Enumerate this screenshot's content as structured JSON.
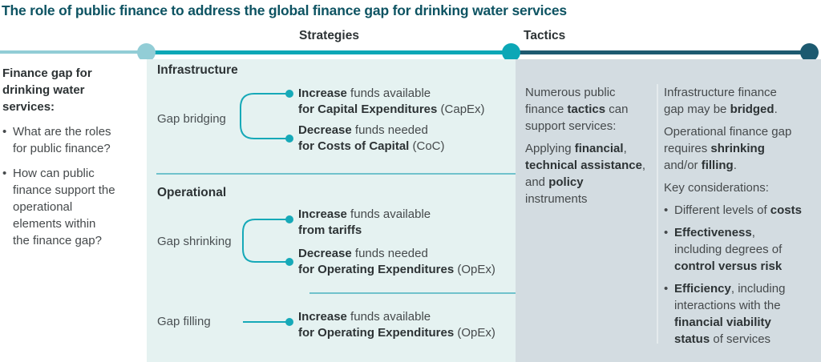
{
  "title": "The role of public finance to address the global finance gap for drinking water services",
  "column_headers": {
    "strategies": "Strategies",
    "tactics": "Tactics"
  },
  "left_panel": {
    "heading_lines": [
      "Finance gap for",
      "drinking water",
      "services:"
    ],
    "bullets": [
      {
        "lines": [
          "What are the roles",
          "for public finance?"
        ]
      },
      {
        "lines": [
          "How can public",
          "finance support the",
          "operational",
          "elements within",
          "the finance gap?"
        ]
      }
    ]
  },
  "strategies": {
    "infrastructure_heading": "Infrastructure",
    "operational_heading": "Operational",
    "gap_bridging_label": "Gap bridging",
    "gap_shrinking_label": "Gap shrinking",
    "gap_filling_label": "Gap filling",
    "items": {
      "capex": {
        "line1": [
          {
            "t": "Increase",
            "b": true
          },
          {
            "t": " funds available"
          }
        ],
        "line2": [
          {
            "t": "for Capital Expenditures",
            "b": true
          },
          {
            "t": " (CapEx)"
          }
        ]
      },
      "coc": {
        "line1": [
          {
            "t": "Decrease",
            "b": true
          },
          {
            "t": " funds needed"
          }
        ],
        "line2": [
          {
            "t": "for Costs of Capital",
            "b": true
          },
          {
            "t": " (CoC)"
          }
        ]
      },
      "tariffs": {
        "line1": [
          {
            "t": "Increase",
            "b": true
          },
          {
            "t": " funds available"
          }
        ],
        "line2": [
          {
            "t": "from tariffs",
            "b": true
          }
        ]
      },
      "opex_decrease": {
        "line1": [
          {
            "t": "Decrease",
            "b": true
          },
          {
            "t": " funds needed"
          }
        ],
        "line2": [
          {
            "t": "for Operating Expenditures",
            "b": true
          },
          {
            "t": " (OpEx)"
          }
        ]
      },
      "opex_increase": {
        "line1": [
          {
            "t": "Increase",
            "b": true
          },
          {
            "t": " funds available"
          }
        ],
        "line2": [
          {
            "t": "for Operating Expenditures",
            "b": true
          },
          {
            "t": " (OpEx)"
          }
        ]
      }
    }
  },
  "tactics": {
    "intro": {
      "lines": [
        [
          {
            "t": "Numerous public"
          }
        ],
        [
          {
            "t": "finance "
          },
          {
            "t": "tactics",
            "b": true
          },
          {
            "t": " can"
          }
        ],
        [
          {
            "t": "support services:"
          }
        ]
      ]
    },
    "instruments": {
      "lines": [
        [
          {
            "t": "Applying "
          },
          {
            "t": "financial",
            "b": true
          },
          {
            "t": ","
          }
        ],
        [
          {
            "t": "technical assistance",
            "b": true
          },
          {
            "t": ","
          }
        ],
        [
          {
            "t": "and "
          },
          {
            "t": "policy",
            "b": true
          }
        ],
        [
          {
            "t": "instruments"
          }
        ]
      ]
    },
    "outcome_infrastructure": {
      "lines": [
        [
          {
            "t": "Infrastructure finance"
          }
        ],
        [
          {
            "t": "gap may be "
          },
          {
            "t": "bridged",
            "b": true
          },
          {
            "t": "."
          }
        ]
      ]
    },
    "outcome_operational": {
      "lines": [
        [
          {
            "t": "Operational finance gap"
          }
        ],
        [
          {
            "t": "requires "
          },
          {
            "t": "shrinking",
            "b": true
          }
        ],
        [
          {
            "t": "and/or "
          },
          {
            "t": "filling",
            "b": true
          },
          {
            "t": "."
          }
        ]
      ]
    },
    "key_considerations_heading": "Key considerations:",
    "considerations": [
      {
        "lines": [
          [
            {
              "t": "Different levels of "
            },
            {
              "t": "costs",
              "b": true
            }
          ]
        ]
      },
      {
        "lines": [
          [
            {
              "t": "Effectiveness",
              "b": true
            },
            {
              "t": ","
            }
          ],
          [
            {
              "t": "including degrees of"
            }
          ],
          [
            {
              "t": "control versus risk",
              "b": true
            }
          ]
        ]
      },
      {
        "lines": [
          [
            {
              "t": "Efficiency",
              "b": true
            },
            {
              "t": ", including"
            }
          ],
          [
            {
              "t": "interactions with the"
            }
          ],
          [
            {
              "t": "financial viability",
              "b": true
            }
          ],
          [
            {
              "t": "status",
              "b": true
            },
            {
              "t": " of services"
            }
          ]
        ]
      }
    ]
  },
  "colors": {
    "title_text": "#0d5362",
    "timeline_light": "#92cdd6",
    "timeline_mid": "#0ca7b6",
    "timeline_dark": "#1d5a70",
    "strategies_bg": "#e5f2f1",
    "tactics_bg": "#d3dce1",
    "connector": "#16a9b8",
    "separator": "#49b2bf",
    "body_text": "#45494b",
    "bold_text": "#2d3335",
    "divider": "#e4ebed"
  }
}
